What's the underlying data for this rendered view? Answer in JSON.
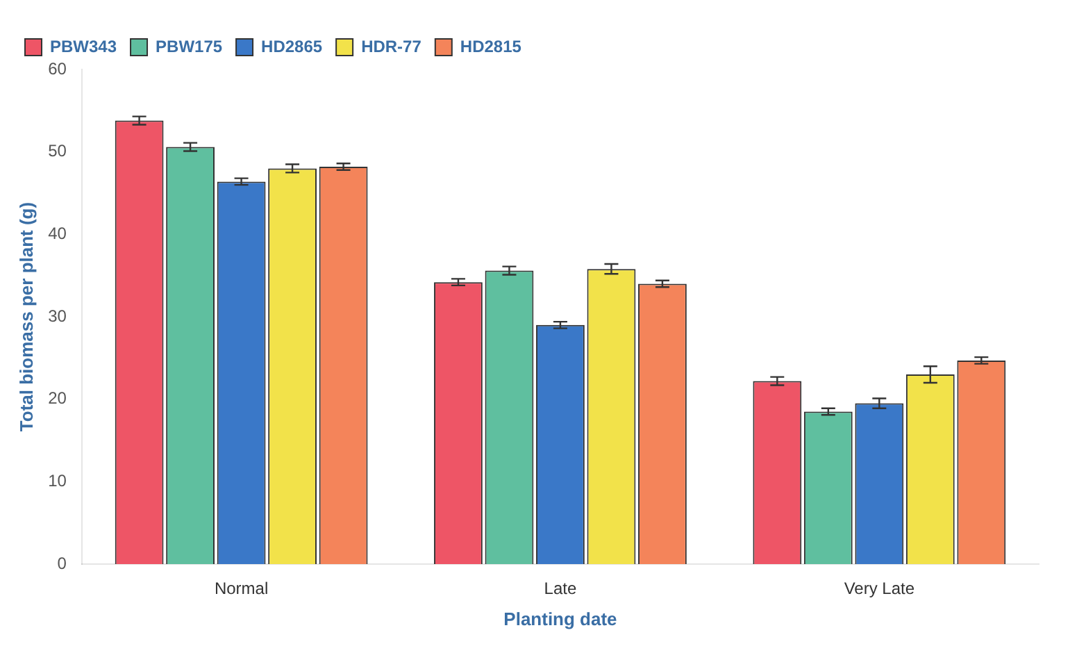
{
  "chart_data": {
    "type": "bar",
    "xlabel": "Planting date",
    "ylabel": "Total biomass per plant (g)",
    "categories": [
      "Normal",
      "Late",
      "Very Late"
    ],
    "series": [
      {
        "name": "PBW343",
        "color": "#ee5566",
        "values": [
          53.8,
          34.2,
          22.2
        ],
        "errors": [
          0.5,
          0.4,
          0.5
        ]
      },
      {
        "name": "PBW175",
        "color": "#5fbf9f",
        "values": [
          50.6,
          35.6,
          18.5
        ],
        "errors": [
          0.5,
          0.5,
          0.4
        ]
      },
      {
        "name": "HD2865",
        "color": "#3a78c8",
        "values": [
          46.4,
          29.0,
          19.5
        ],
        "errors": [
          0.4,
          0.4,
          0.6
        ]
      },
      {
        "name": "HDR-77",
        "color": "#f2e24a",
        "values": [
          48.0,
          35.8,
          23.0
        ],
        "errors": [
          0.5,
          0.6,
          1.0
        ]
      },
      {
        "name": "HD2815",
        "color": "#f4845a",
        "values": [
          48.2,
          34.0,
          24.7
        ],
        "errors": [
          0.4,
          0.4,
          0.4
        ]
      }
    ],
    "ylim": [
      0,
      60
    ],
    "yticks": [
      0,
      10,
      20,
      30,
      40,
      50,
      60
    ],
    "grid": false,
    "legend": "top left"
  }
}
